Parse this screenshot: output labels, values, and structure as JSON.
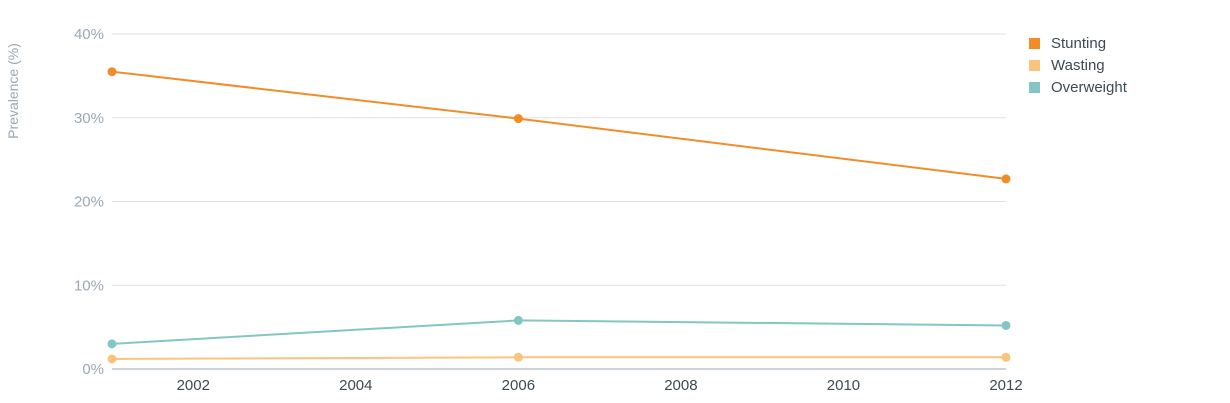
{
  "chart_data": {
    "type": "line",
    "ylabel": "Prevalence (%)",
    "xlabel": "",
    "xlim": [
      2001,
      2012
    ],
    "ylim": [
      0,
      40
    ],
    "x_ticks": [
      2002,
      2004,
      2006,
      2008,
      2010,
      2012
    ],
    "y_ticks": [
      0,
      10,
      20,
      30,
      40
    ],
    "y_tick_labels": [
      "0%",
      "10%",
      "20%",
      "30%",
      "40%"
    ],
    "grid": true,
    "legend_position": "top-right",
    "series": [
      {
        "name": "Stunting",
        "color": "#f28c28",
        "points": [
          {
            "x": 2001,
            "y": 35.5
          },
          {
            "x": 2006,
            "y": 29.9
          },
          {
            "x": 2012,
            "y": 22.7
          }
        ]
      },
      {
        "name": "Wasting",
        "color": "#fbc47c",
        "points": [
          {
            "x": 2001,
            "y": 1.2
          },
          {
            "x": 2006,
            "y": 1.4
          },
          {
            "x": 2012,
            "y": 1.4
          }
        ]
      },
      {
        "name": "Overweight",
        "color": "#84c6c3",
        "points": [
          {
            "x": 2001,
            "y": 3.0
          },
          {
            "x": 2006,
            "y": 5.8
          },
          {
            "x": 2012,
            "y": 5.2
          }
        ]
      }
    ]
  }
}
